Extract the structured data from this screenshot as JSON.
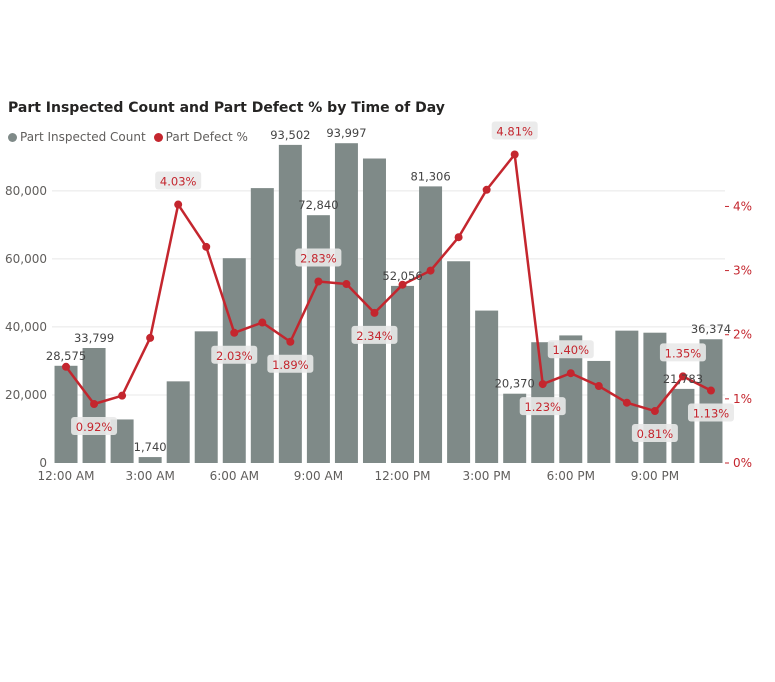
{
  "colors": {
    "bar": "#7f8a88",
    "line": "#c4262e",
    "grid": "#e8e8e8",
    "label_bg": "#e9e9e9"
  },
  "chart_data": {
    "type": "bar",
    "title": "Part Inspected Count and Part Defect % by Time of Day",
    "legend": [
      {
        "name": "Part Inspected Count",
        "color": "#7f8a88",
        "icon": "circle-icon"
      },
      {
        "name": "Part Defect %",
        "color": "#c4262e",
        "icon": "circle-icon"
      }
    ],
    "legend_position": "top-left",
    "grid": true,
    "categories": [
      "12:00 AM",
      "1:00 AM",
      "2:00 AM",
      "3:00 AM",
      "4:00 AM",
      "5:00 AM",
      "6:00 AM",
      "7:00 AM",
      "8:00 AM",
      "9:00 AM",
      "10:00 AM",
      "11:00 AM",
      "12:00 PM",
      "1:00 PM",
      "2:00 PM",
      "3:00 PM",
      "4:00 PM",
      "5:00 PM",
      "6:00 PM",
      "7:00 PM",
      "8:00 PM",
      "9:00 PM",
      "10:00 PM",
      "11:00 PM"
    ],
    "x_tick_labels": [
      "12:00 AM",
      "",
      "",
      "3:00 AM",
      "",
      "",
      "6:00 AM",
      "",
      "",
      "9:00 AM",
      "",
      "",
      "12:00 PM",
      "",
      "",
      "3:00 PM",
      "",
      "",
      "6:00 PM",
      "",
      "",
      "9:00 PM",
      "",
      ""
    ],
    "y_left": {
      "ticks": [
        0,
        20000,
        40000,
        60000,
        80000
      ],
      "tick_labels": [
        "0",
        "20,000",
        "40,000",
        "60,000",
        "80,000"
      ],
      "range": [
        0,
        92000
      ]
    },
    "y_right": {
      "ticks": [
        0,
        1,
        2,
        3,
        4
      ],
      "tick_labels": [
        "0%",
        "1%",
        "2%",
        "3%",
        "4%"
      ],
      "range": [
        0,
        4.88
      ]
    },
    "series": [
      {
        "name": "Part Inspected Count",
        "type": "bar",
        "axis": "left",
        "values": [
          28575,
          33799,
          12800,
          1740,
          24000,
          38700,
          60200,
          80800,
          93502,
          72840,
          93997,
          89500,
          52056,
          81306,
          59300,
          44800,
          20370,
          35500,
          37500,
          30000,
          38900,
          38300,
          21783,
          36374
        ],
        "labels": [
          "28,575",
          "33,799",
          "",
          "1,740",
          "",
          "",
          "",
          "",
          "93,502",
          "72,840",
          "93,997",
          "",
          "52,056",
          "81,306",
          "",
          "",
          "20,370",
          "",
          "",
          "",
          "",
          "",
          "21,783",
          "36,374"
        ]
      },
      {
        "name": "Part Defect %",
        "type": "line",
        "axis": "right",
        "values": [
          1.5,
          0.92,
          1.05,
          1.95,
          4.03,
          3.37,
          2.03,
          2.19,
          1.89,
          2.83,
          2.79,
          2.34,
          2.78,
          3.0,
          3.52,
          4.26,
          4.81,
          1.23,
          1.4,
          1.2,
          0.94,
          0.81,
          1.35,
          1.13
        ],
        "labels": [
          "",
          "0.92%",
          "",
          "",
          "4.03%",
          "",
          "2.03%",
          "",
          "1.89%",
          "2.83%",
          "",
          "2.34%",
          "",
          "",
          "",
          "",
          "4.81%",
          "1.23%",
          "1.40%",
          "",
          "",
          "0.81%",
          "1.35%",
          "1.13%"
        ]
      }
    ]
  }
}
